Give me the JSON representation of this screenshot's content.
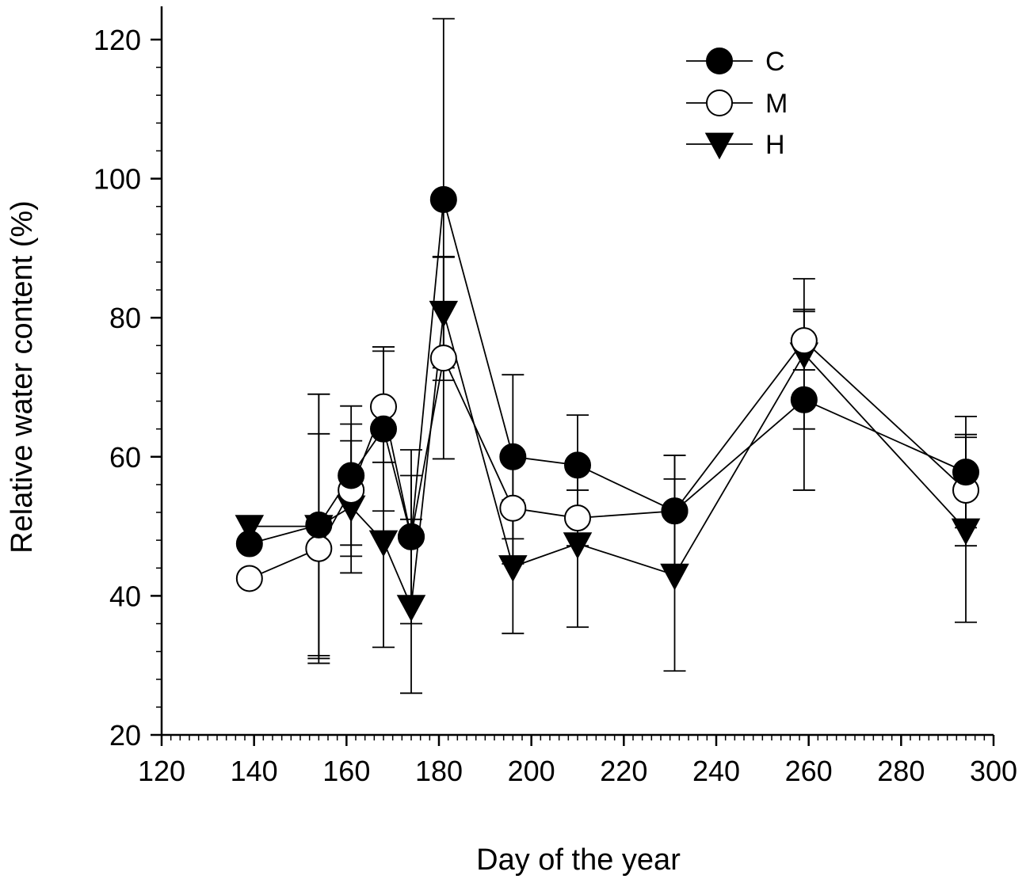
{
  "chart_data": {
    "type": "line",
    "xlabel": "Day of the year",
    "ylabel": "Relative water content (%)",
    "xlim": [
      120,
      300
    ],
    "ylim": [
      20,
      120
    ],
    "x_ticks": [
      120,
      140,
      160,
      180,
      200,
      220,
      240,
      260,
      280,
      300
    ],
    "y_ticks": [
      20,
      40,
      60,
      80,
      100,
      120
    ],
    "x_minor_step": 2,
    "y_minor_step": 4,
    "legend_position": "top-right",
    "series": [
      {
        "name": "C",
        "marker": "filled-circle",
        "x": [
          139,
          154,
          161,
          168,
          174,
          181,
          196,
          210,
          231,
          259,
          294
        ],
        "values": [
          47.5,
          50.2,
          57.3,
          64.0,
          48.5,
          97.0,
          60.0,
          58.8,
          52.2,
          68.2,
          57.8
        ],
        "error": [
          null,
          18.8,
          10.0,
          11.8,
          12.5,
          26.0,
          11.8,
          7.2,
          8.0,
          13.0,
          8.0
        ]
      },
      {
        "name": "M",
        "marker": "open-circle",
        "x": [
          139,
          154,
          161,
          168,
          174,
          181,
          196,
          210,
          231,
          259,
          294
        ],
        "values": [
          42.5,
          46.8,
          55.2,
          67.2,
          48.5,
          74.2,
          52.6,
          51.2,
          52.2,
          76.7,
          55.2
        ],
        "error": [
          null,
          16.5,
          9.5,
          8.0,
          8.8,
          14.5,
          8.0,
          4.0,
          8.0,
          4.2,
          8.0
        ]
      },
      {
        "name": "H",
        "marker": "filled-triangle-down",
        "x": [
          139,
          154,
          161,
          168,
          174,
          181,
          196,
          210,
          231,
          259,
          294
        ],
        "values": [
          50.0,
          50.0,
          52.8,
          47.8,
          38.5,
          80.8,
          44.2,
          47.5,
          43.0,
          74.8,
          49.5
        ],
        "error": [
          null,
          19.0,
          9.5,
          15.2,
          12.5,
          8.0,
          9.6,
          12.0,
          13.8,
          10.8,
          13.3
        ]
      }
    ]
  }
}
